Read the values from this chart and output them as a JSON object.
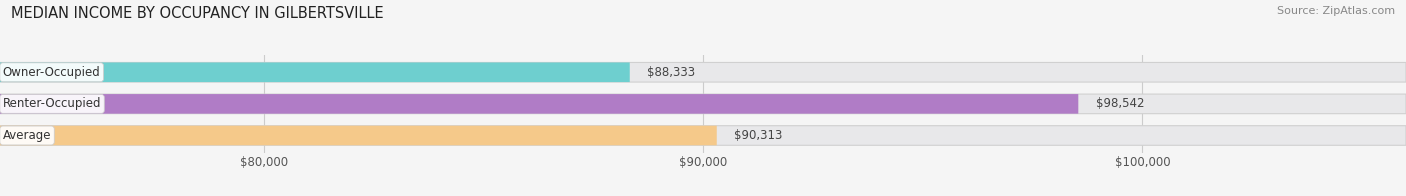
{
  "title": "MEDIAN INCOME BY OCCUPANCY IN GILBERTSVILLE",
  "source": "Source: ZipAtlas.com",
  "categories": [
    "Owner-Occupied",
    "Renter-Occupied",
    "Average"
  ],
  "values": [
    88333,
    98542,
    90313
  ],
  "labels": [
    "$88,333",
    "$98,542",
    "$90,313"
  ],
  "bar_colors": [
    "#6ecfcf",
    "#b07cc6",
    "#f5c98a"
  ],
  "xlim_min": 74000,
  "xlim_max": 106000,
  "xticks": [
    80000,
    90000,
    100000
  ],
  "xtick_labels": [
    "$80,000",
    "$90,000",
    "$100,000"
  ],
  "title_fontsize": 10.5,
  "source_fontsize": 8,
  "label_fontsize": 8.5,
  "tick_fontsize": 8.5,
  "bar_height": 0.62,
  "background_color": "#f5f5f5",
  "bar_bg_color": "#e8e8ea"
}
